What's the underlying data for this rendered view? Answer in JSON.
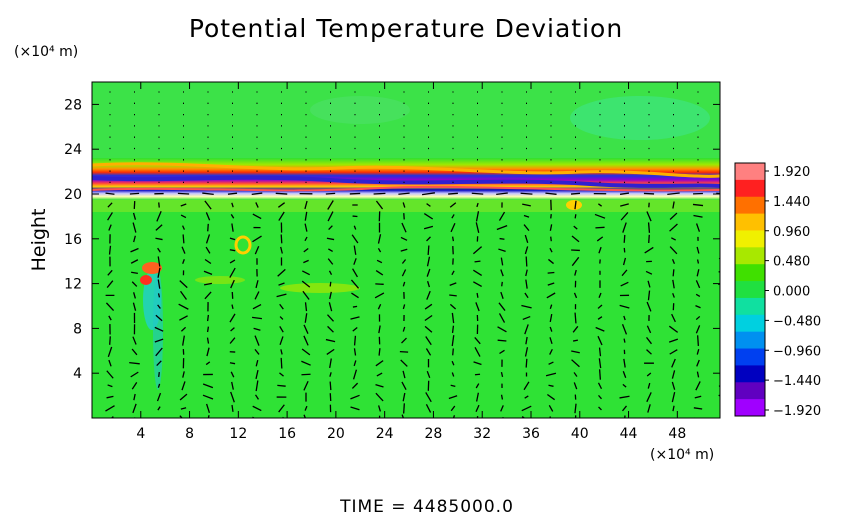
{
  "chart_data": {
    "type": "heatmap",
    "title": "Potential Temperature Deviation",
    "ylabel": "Height",
    "y_unit": "(×10⁴ m)",
    "x_unit": "(×10⁴ m)",
    "footer": "TIME  =  4485000.0",
    "xlim": [
      0,
      51.5
    ],
    "ylim": [
      0,
      30
    ],
    "x_ticks": [
      4,
      8,
      12,
      16,
      20,
      24,
      28,
      32,
      36,
      40,
      44,
      48
    ],
    "x_tick_labels": [
      "4",
      "8",
      "12",
      "16",
      "20",
      "24",
      "28",
      "32",
      "36",
      "40",
      "44",
      "48"
    ],
    "y_ticks": [
      4,
      8,
      12,
      16,
      20,
      24,
      28
    ],
    "y_tick_labels": [
      "4",
      "8",
      "12",
      "16",
      "20",
      "24",
      "28"
    ],
    "colorbar": {
      "min": -1.92,
      "max": 1.92,
      "labels": [
        "1.920",
        "1.440",
        "0.960",
        "0.480",
        "0.000",
        "−0.480",
        "−0.960",
        "−1.440",
        "−1.920"
      ],
      "colors": [
        "#ff8080",
        "#ff2020",
        "#ff7000",
        "#ffc000",
        "#f0f000",
        "#a8e800",
        "#40e000",
        "#20e040",
        "#10e0a0",
        "#00d0e0",
        "#0090f0",
        "#0040f0",
        "#0000c0",
        "#6000c0",
        "#a000ff"
      ]
    },
    "features": [
      {
        "name": "positive band",
        "y": 21.8,
        "value": 1.2
      },
      {
        "name": "negative band",
        "y": 21.0,
        "value": -1.8
      },
      {
        "name": "positive band",
        "y": 20.5,
        "value": 1.6
      },
      {
        "name": "negative band",
        "y": 20.1,
        "value": -1.9
      },
      {
        "name": "cold plume",
        "x": 6,
        "y": 10,
        "value": -0.9
      },
      {
        "name": "warm blob",
        "x": 5.5,
        "y": 13.4,
        "value": 1.4
      },
      {
        "name": "warm blob",
        "x": 13,
        "y": 15.5,
        "value": 1.2
      },
      {
        "name": "warm blob",
        "x": 39,
        "y": 19,
        "value": 1.0
      }
    ]
  }
}
